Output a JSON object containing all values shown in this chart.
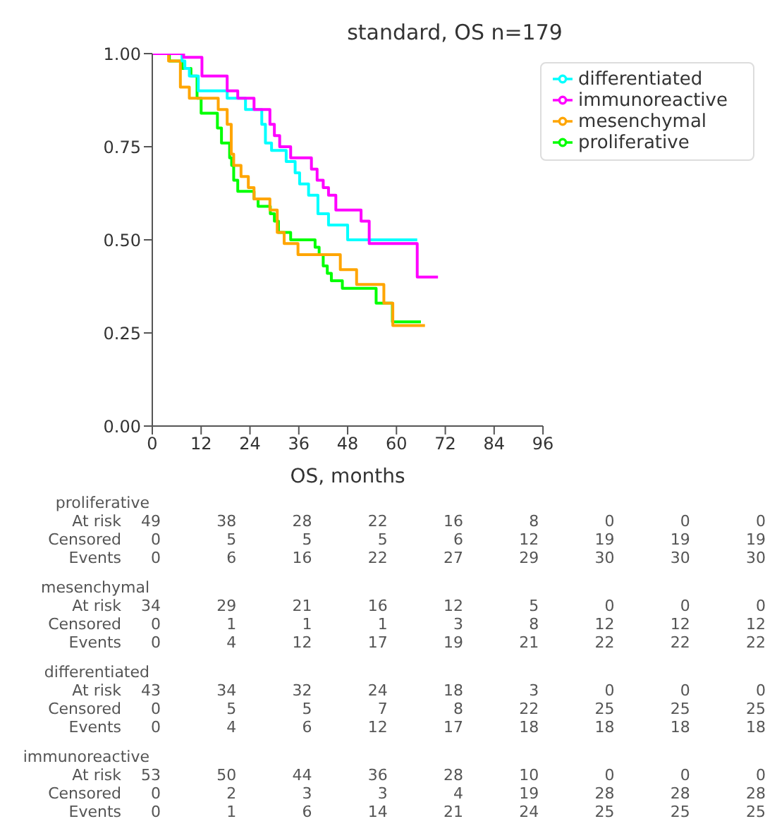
{
  "chart_data": {
    "type": "step",
    "title": "standard, OS n=179",
    "xlabel": "OS, months",
    "xlim": [
      0,
      96
    ],
    "xticks": [
      0,
      12,
      24,
      36,
      48,
      60,
      72,
      84,
      96
    ],
    "ylim": [
      0,
      1
    ],
    "yticks": [
      {
        "value": 0,
        "label": "0.00"
      },
      {
        "value": 0.25,
        "label": "0.25"
      },
      {
        "value": 0.5,
        "label": "0.50"
      },
      {
        "value": 0.75,
        "label": "0.75"
      },
      {
        "value": 1,
        "label": "1.00"
      }
    ],
    "legend": "top right",
    "grid": false,
    "marker": "none",
    "line_style": "solid",
    "series": [
      {
        "name": "proliferative",
        "color": "#00ff00",
        "x": [
          0,
          4.2,
          7.3,
          9.5,
          11,
          12,
          16,
          17,
          19,
          19.5,
          20,
          21,
          25,
          26,
          29,
          30,
          31,
          34,
          40,
          41,
          42,
          43,
          44,
          46.7,
          55,
          59,
          66
        ],
        "values": [
          1,
          0.98,
          0.96,
          0.94,
          0.88,
          0.84,
          0.8,
          0.76,
          0.72,
          0.7,
          0.66,
          0.63,
          0.61,
          0.59,
          0.57,
          0.55,
          0.52,
          0.5,
          0.48,
          0.46,
          0.43,
          0.41,
          0.39,
          0.37,
          0.33,
          0.28,
          0.28
        ]
      },
      {
        "name": "mesenchymal",
        "color": "#ffa500",
        "x": [
          0,
          4,
          6.9,
          9.1,
          16.2,
          18.4,
          19.4,
          20,
          21.8,
          23.6,
          25,
          28.9,
          30.7,
          32.4,
          35.8,
          46.2,
          50.2,
          56.9,
          59.1,
          67
        ],
        "values": [
          1,
          0.98,
          0.91,
          0.88,
          0.85,
          0.81,
          0.73,
          0.7,
          0.67,
          0.64,
          0.61,
          0.58,
          0.52,
          0.49,
          0.46,
          0.42,
          0.38,
          0.33,
          0.27,
          0.27
        ]
      },
      {
        "name": "differentiated",
        "color": "#00ffff",
        "x": [
          0,
          7.3,
          8,
          9.1,
          11.3,
          18.4,
          22.9,
          26.9,
          27.8,
          29.3,
          32.9,
          35.1,
          36.2,
          38.4,
          40.7,
          43.3,
          48,
          65.1
        ],
        "values": [
          1,
          0.98,
          0.96,
          0.94,
          0.9,
          0.88,
          0.85,
          0.81,
          0.76,
          0.74,
          0.71,
          0.68,
          0.65,
          0.62,
          0.57,
          0.54,
          0.5,
          0.5
        ]
      },
      {
        "name": "immunoreactive",
        "color": "#ff00ff",
        "x": [
          0,
          7.7,
          12.2,
          18.4,
          21,
          25,
          28.9,
          30,
          31.3,
          34,
          39.1,
          40.5,
          42,
          43.3,
          45.1,
          51.3,
          53.3,
          65.1,
          70.2
        ],
        "values": [
          1,
          0.99,
          0.94,
          0.9,
          0.88,
          0.85,
          0.81,
          0.78,
          0.75,
          0.72,
          0.69,
          0.66,
          0.64,
          0.62,
          0.58,
          0.55,
          0.49,
          0.4,
          0.4
        ]
      }
    ],
    "annotations": [
      "proliferative",
      "At risk 49 38 28 22 16 8 0 0 0",
      "Censored 0 5 5 5 6 12 19 19 19",
      "Events 0 6 16 22 27 29 30 30 30",
      "mesenchymal",
      "At risk 34 29 21 16 12 5 0 0 0",
      "Censored 0 1 1 1 3 8 12 12 12",
      "Events 0 4 12 17 19 21 22 22 22",
      "differentiated",
      "At risk 43 34 32 24 18 3 0 0 0",
      "Censored 0 5 5 7 8 22 25 25 25",
      "Events 0 4 6 12 17 18 18 18 18",
      "immunoreactive",
      "At risk 53 50 44 36 28 10 0 0 0",
      "Censored 0 2 3 3 4 19 28 28 28",
      "Events 0 1 6 14 21 24 25 25 25"
    ]
  }
}
